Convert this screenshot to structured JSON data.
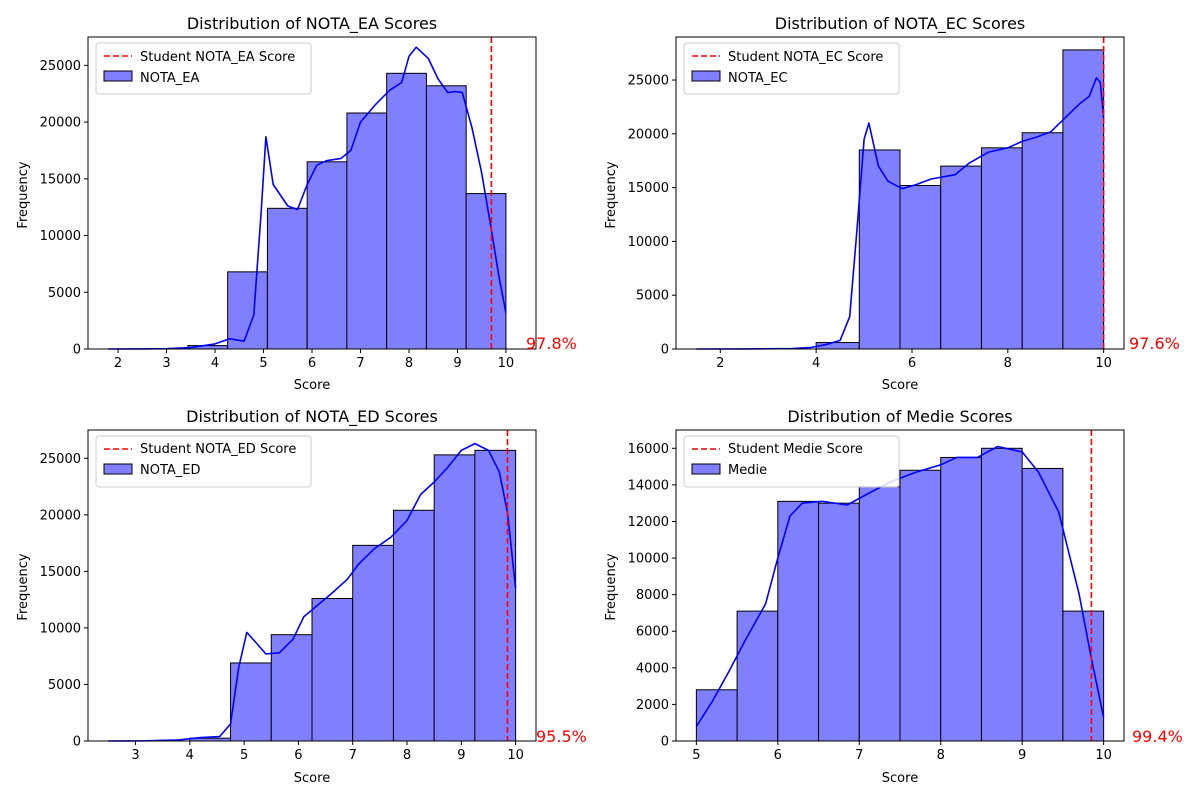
{
  "colors": {
    "bar_fill": "#8080ff",
    "bar_edge": "#000000",
    "kde": "#0000ff",
    "marker": "#ff0000"
  },
  "chart_data": [
    {
      "type": "bar",
      "title": "Distribution of NOTA_EA Scores",
      "xlabel": "Score",
      "ylabel": "Frequency",
      "xlim": [
        1.8,
        10.2
      ],
      "ylim": [
        0,
        27500
      ],
      "xticks": [
        2,
        3,
        4,
        5,
        6,
        7,
        8,
        9,
        10
      ],
      "yticks": [
        0,
        5000,
        10000,
        15000,
        20000,
        25000
      ],
      "bin_edges": [
        1.8,
        2.62,
        3.44,
        4.26,
        5.08,
        5.9,
        6.72,
        7.54,
        8.36,
        9.18,
        10.0
      ],
      "values": [
        0,
        0,
        300,
        6800,
        12400,
        16500,
        20800,
        24300,
        23200,
        13700
      ],
      "kde": [
        [
          1.8,
          0
        ],
        [
          2.5,
          10
        ],
        [
          3,
          30
        ],
        [
          3.5,
          120
        ],
        [
          4,
          450
        ],
        [
          4.3,
          900
        ],
        [
          4.6,
          700
        ],
        [
          4.8,
          3000
        ],
        [
          4.95,
          12000
        ],
        [
          5.05,
          18700
        ],
        [
          5.2,
          14500
        ],
        [
          5.5,
          12600
        ],
        [
          5.7,
          12300
        ],
        [
          5.9,
          14500
        ],
        [
          6.1,
          16200
        ],
        [
          6.3,
          16600
        ],
        [
          6.6,
          16800
        ],
        [
          6.8,
          17500
        ],
        [
          7.0,
          20000
        ],
        [
          7.3,
          21500
        ],
        [
          7.6,
          22800
        ],
        [
          7.85,
          23500
        ],
        [
          8.0,
          25800
        ],
        [
          8.15,
          26600
        ],
        [
          8.4,
          25600
        ],
        [
          8.6,
          23800
        ],
        [
          8.8,
          22600
        ],
        [
          8.95,
          22700
        ],
        [
          9.1,
          22600
        ],
        [
          9.3,
          19500
        ],
        [
          9.5,
          15500
        ],
        [
          9.7,
          10500
        ],
        [
          9.85,
          6500
        ],
        [
          10.0,
          3200
        ]
      ],
      "student_score": 9.7,
      "legend": [
        "Student NOTA_EA Score",
        "NOTA_EA"
      ],
      "percentile_label": "97.8%"
    },
    {
      "type": "bar",
      "title": "Distribution of NOTA_EC Scores",
      "xlabel": "Score",
      "ylabel": "Frequency",
      "xlim": [
        1.5,
        10.0
      ],
      "ylim": [
        0,
        29000
      ],
      "xticks": [
        2,
        4,
        6,
        8,
        10
      ],
      "yticks": [
        0,
        5000,
        10000,
        15000,
        20000,
        25000
      ],
      "bin_edges": [
        1.5,
        2.5,
        3.0,
        4.0,
        4.9,
        5.75,
        6.6,
        7.45,
        8.3,
        9.15,
        10.0
      ],
      "values": [
        0,
        0,
        0,
        600,
        18500,
        15200,
        17000,
        18700,
        20100,
        27800
      ],
      "kde": [
        [
          1.5,
          0
        ],
        [
          2.5,
          5
        ],
        [
          3.5,
          40
        ],
        [
          3.9,
          150
        ],
        [
          4.2,
          400
        ],
        [
          4.5,
          800
        ],
        [
          4.7,
          3000
        ],
        [
          4.85,
          11000
        ],
        [
          5.0,
          19500
        ],
        [
          5.1,
          21000
        ],
        [
          5.3,
          17000
        ],
        [
          5.5,
          15600
        ],
        [
          5.8,
          14900
        ],
        [
          6.1,
          15300
        ],
        [
          6.4,
          15800
        ],
        [
          6.9,
          16200
        ],
        [
          7.2,
          17300
        ],
        [
          7.6,
          18300
        ],
        [
          8.0,
          18700
        ],
        [
          8.3,
          19300
        ],
        [
          8.6,
          19700
        ],
        [
          8.9,
          20200
        ],
        [
          9.2,
          21500
        ],
        [
          9.5,
          22800
        ],
        [
          9.7,
          23500
        ],
        [
          9.85,
          25200
        ],
        [
          9.93,
          24800
        ],
        [
          10.0,
          21500
        ]
      ],
      "student_score": 10.0,
      "legend": [
        "Student NOTA_EC Score",
        "NOTA_EC"
      ],
      "percentile_label": "97.6%"
    },
    {
      "type": "bar",
      "title": "Distribution of NOTA_ED Scores",
      "xlabel": "Score",
      "ylabel": "Frequency",
      "xlim": [
        2.5,
        10.0
      ],
      "ylim": [
        0,
        27500
      ],
      "xticks": [
        3,
        4,
        5,
        6,
        7,
        8,
        9,
        10
      ],
      "yticks": [
        0,
        5000,
        10000,
        15000,
        20000,
        25000
      ],
      "bin_edges": [
        2.5,
        3.25,
        4.0,
        4.75,
        5.5,
        6.25,
        7.0,
        7.75,
        8.5,
        9.25,
        10.0
      ],
      "values": [
        0,
        0,
        250,
        6900,
        9400,
        12600,
        17300,
        20400,
        25300,
        25700
      ],
      "kde": [
        [
          2.5,
          0
        ],
        [
          3.2,
          20
        ],
        [
          3.8,
          100
        ],
        [
          4.2,
          300
        ],
        [
          4.55,
          400
        ],
        [
          4.75,
          1500
        ],
        [
          4.9,
          6500
        ],
        [
          5.05,
          9600
        ],
        [
          5.2,
          8800
        ],
        [
          5.4,
          7700
        ],
        [
          5.65,
          7800
        ],
        [
          5.9,
          9000
        ],
        [
          6.1,
          11000
        ],
        [
          6.3,
          11800
        ],
        [
          6.6,
          13000
        ],
        [
          6.9,
          14300
        ],
        [
          7.1,
          15600
        ],
        [
          7.4,
          17000
        ],
        [
          7.7,
          18000
        ],
        [
          8.0,
          19500
        ],
        [
          8.25,
          21800
        ],
        [
          8.5,
          22900
        ],
        [
          8.75,
          24200
        ],
        [
          9.0,
          25700
        ],
        [
          9.25,
          26300
        ],
        [
          9.5,
          25700
        ],
        [
          9.7,
          23800
        ],
        [
          9.85,
          20200
        ],
        [
          10.0,
          13500
        ]
      ],
      "student_score": 9.85,
      "legend": [
        "Student NOTA_ED Score",
        "NOTA_ED"
      ],
      "percentile_label": "95.5%"
    },
    {
      "type": "bar",
      "title": "Distribution of Medie Scores",
      "xlabel": "Score",
      "ylabel": "Frequency",
      "xlim": [
        5.0,
        10.0
      ],
      "ylim": [
        0,
        17000
      ],
      "xticks": [
        5,
        6,
        7,
        8,
        9,
        10
      ],
      "yticks": [
        0,
        2000,
        4000,
        6000,
        8000,
        10000,
        12000,
        14000,
        16000
      ],
      "bin_edges": [
        5.0,
        5.5,
        6.0,
        6.5,
        7.0,
        7.5,
        8.0,
        8.5,
        9.0,
        9.5,
        10.0
      ],
      "values": [
        2800,
        7100,
        13100,
        13000,
        13900,
        14800,
        15500,
        16000,
        14900,
        7100
      ],
      "kde": [
        [
          5.0,
          800
        ],
        [
          5.2,
          2200
        ],
        [
          5.4,
          3800
        ],
        [
          5.6,
          5500
        ],
        [
          5.85,
          7500
        ],
        [
          6.0,
          10000
        ],
        [
          6.15,
          12300
        ],
        [
          6.3,
          13000
        ],
        [
          6.55,
          13100
        ],
        [
          6.85,
          12900
        ],
        [
          7.1,
          13500
        ],
        [
          7.4,
          14200
        ],
        [
          7.7,
          14700
        ],
        [
          8.0,
          15100
        ],
        [
          8.2,
          15500
        ],
        [
          8.45,
          15500
        ],
        [
          8.7,
          16100
        ],
        [
          9.0,
          15800
        ],
        [
          9.2,
          14700
        ],
        [
          9.45,
          12500
        ],
        [
          9.7,
          8000
        ],
        [
          9.85,
          4500
        ],
        [
          10.0,
          1300
        ]
      ],
      "student_score": 9.85,
      "legend": [
        "Student Medie Score",
        "Medie"
      ],
      "percentile_label": "99.4%"
    }
  ]
}
